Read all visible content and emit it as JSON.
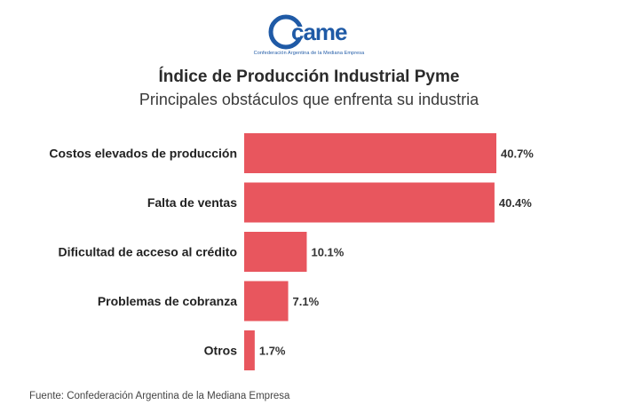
{
  "logo": {
    "text": "came",
    "tagline": "Confederación Argentina de la Mediana Empresa"
  },
  "title": "Índice de Producción Industrial Pyme",
  "subtitle": "Principales obstáculos que enfrenta su industria",
  "source": "Fuente: Confederación Argentina de la Mediana Empresa",
  "colors": {
    "bar": "#e8565e",
    "brand": "#1f5aa6"
  },
  "chart_data": {
    "type": "bar",
    "orientation": "horizontal",
    "categories": [
      "Costos elevados de producción",
      "Falta de ventas",
      "Dificultad de acceso al crédito",
      "Problemas de cobranza",
      "Otros"
    ],
    "values": [
      40.7,
      40.4,
      10.1,
      7.1,
      1.7
    ],
    "data_labels": [
      "40.7%",
      "40.4%",
      "10.1%",
      "7.1%",
      "1.7%"
    ],
    "unit": "%",
    "xlim": [
      0,
      40.7
    ],
    "grid": false,
    "legend": false
  }
}
